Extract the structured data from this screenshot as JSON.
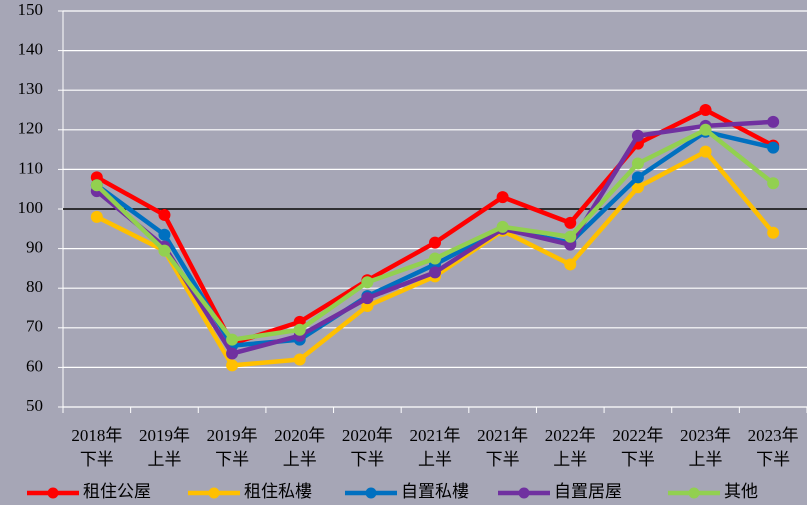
{
  "chart_data": {
    "type": "line",
    "categories": [
      "2018年\n下半",
      "2019年\n上半",
      "2019年\n下半",
      "2020年\n上半",
      "2020年\n下半",
      "2021年\n上半",
      "2021年\n下半",
      "2022年\n上半",
      "2022年\n下半",
      "2023年\n上半",
      "2023年\n下半"
    ],
    "series": [
      {
        "name": "租住公屋",
        "color": "#ff0000",
        "values": [
          108,
          98.5,
          66,
          71.5,
          82,
          91.5,
          103,
          96.5,
          116.5,
          125,
          116
        ]
      },
      {
        "name": "租住私樓",
        "color": "#ffc000",
        "values": [
          98,
          89.5,
          60.5,
          62,
          75.5,
          83,
          94.5,
          86,
          105.5,
          114.5,
          94
        ]
      },
      {
        "name": "自置私樓",
        "color": "#0070c0",
        "values": [
          106,
          93.5,
          65.5,
          67,
          78,
          86,
          95,
          91.5,
          108,
          119.5,
          115.5
        ]
      },
      {
        "name": "自置居屋",
        "color": "#7030a0",
        "values": [
          104.5,
          90.5,
          63.5,
          68,
          77.5,
          84,
          95,
          91,
          118.5,
          121,
          122
        ]
      },
      {
        "name": "其他",
        "color": "#92d050",
        "values": [
          106,
          89.5,
          67,
          69.5,
          81.5,
          87.5,
          95.5,
          93,
          111.5,
          120,
          106.5
        ]
      }
    ],
    "ylim": [
      50,
      150
    ],
    "yticks": [
      50,
      60,
      70,
      80,
      90,
      100,
      110,
      120,
      130,
      140,
      150
    ],
    "reference_line": 100,
    "grid": true,
    "legend": "bottom"
  }
}
